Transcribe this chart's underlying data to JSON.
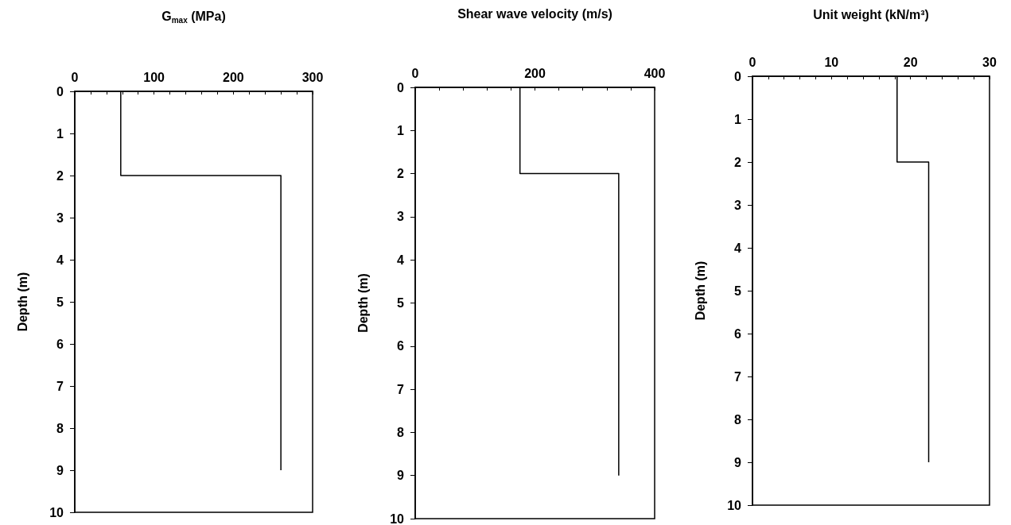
{
  "chart_data": [
    {
      "type": "line",
      "xlabel": "G$_{max}$ (MPa)",
      "ylabel": "Depth (m)",
      "series": [
        {
          "color": "#000000",
          "x": [
            58,
            58,
            260,
            260
          ],
          "values": [
            0,
            2,
            2,
            9
          ]
        }
      ],
      "xlim": [
        0,
        300
      ],
      "xticks": [
        0,
        {
          "value": 20,
          "label": null
        },
        {
          "value": 40,
          "label": null
        },
        {
          "value": 60,
          "label": null
        },
        {
          "value": 80,
          "label": null
        },
        100,
        {
          "value": 120,
          "label": null
        },
        {
          "value": 140,
          "label": null
        },
        {
          "value": 160,
          "label": null
        },
        {
          "value": 180,
          "label": null
        },
        200,
        {
          "value": 220,
          "label": null
        },
        {
          "value": 240,
          "label": null
        },
        {
          "value": 260,
          "label": null
        },
        {
          "value": 280,
          "label": null
        },
        300
      ],
      "ylim": [
        10,
        0
      ],
      "yticks": [
        0,
        1,
        2,
        3,
        4,
        5,
        6,
        7,
        8,
        9,
        10
      ],
      "grid": false,
      "marker": "none",
      "line_style": "solid"
    },
    {
      "type": "line",
      "xlabel": "Shear wave velocity (m/s)",
      "ylabel": "Depth (m)",
      "series": [
        {
          "color": "#000000",
          "x": [
            175,
            175,
            340,
            340
          ],
          "values": [
            0,
            2,
            2,
            9
          ]
        }
      ],
      "xlim": [
        0,
        400
      ],
      "xticks": [
        0,
        {
          "value": 40,
          "label": null
        },
        {
          "value": 80,
          "label": null
        },
        {
          "value": 120,
          "label": null
        },
        {
          "value": 160,
          "label": null
        },
        200,
        {
          "value": 240,
          "label": null
        },
        {
          "value": 280,
          "label": null
        },
        {
          "value": 320,
          "label": null
        },
        {
          "value": 360,
          "label": null
        },
        400
      ],
      "ylim": [
        10,
        0
      ],
      "yticks": [
        0,
        1,
        2,
        3,
        4,
        5,
        6,
        7,
        8,
        9,
        10
      ],
      "grid": false,
      "marker": "none",
      "line_style": "solid"
    },
    {
      "type": "line",
      "xlabel": "Unit weight (kN/m³)",
      "ylabel": "Depth (m)",
      "series": [
        {
          "color": "#000000",
          "x": [
            18.3,
            18.3,
            22.3,
            22.3
          ],
          "values": [
            0,
            2,
            2,
            9
          ]
        }
      ],
      "xlim": [
        0,
        30
      ],
      "xticks": [
        0,
        {
          "value": 2,
          "label": null
        },
        {
          "value": 4,
          "label": null
        },
        {
          "value": 6,
          "label": null
        },
        {
          "value": 8,
          "label": null
        },
        10,
        {
          "value": 12,
          "label": null
        },
        {
          "value": 14,
          "label": null
        },
        {
          "value": 16,
          "label": null
        },
        {
          "value": 18,
          "label": null
        },
        20,
        {
          "value": 22,
          "label": null
        },
        {
          "value": 24,
          "label": null
        },
        {
          "value": 26,
          "label": null
        },
        {
          "value": 28,
          "label": null
        },
        30
      ],
      "ylim": [
        10,
        0
      ],
      "yticks": [
        0,
        1,
        2,
        3,
        4,
        5,
        6,
        7,
        8,
        9,
        10
      ],
      "grid": false,
      "marker": "none",
      "line_style": "solid"
    }
  ]
}
